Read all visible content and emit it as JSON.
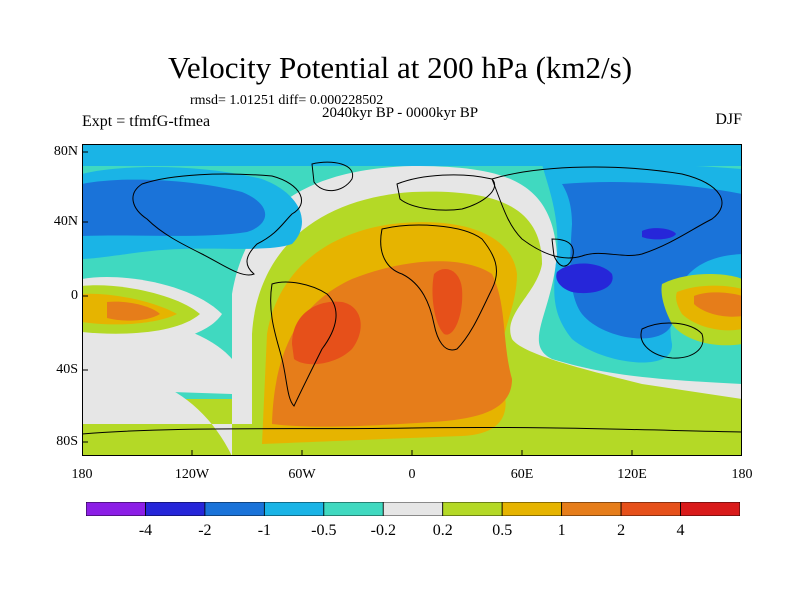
{
  "title": "Velocity Potential at 200 hPa (km2/s)",
  "stats": "rmsd= 1.01251 diff= 0.000228502",
  "period": "2040kyr BP - 0000kyr BP",
  "experiment": "Expt = tfmfG-tfmea",
  "season": "DJF",
  "y_ticks": [
    "80N",
    "40N",
    "0",
    "40S",
    "80S"
  ],
  "x_ticks": [
    "180",
    "120W",
    "60W",
    "0",
    "60E",
    "120E",
    "180"
  ],
  "colorbar": {
    "labels": [
      "-4",
      "-2",
      "-1",
      "-0.5",
      "-0.2",
      "0.2",
      "0.5",
      "1",
      "2",
      "4"
    ],
    "colors": [
      "#8c1ee6",
      "#2626d9",
      "#1a73d9",
      "#1ab4e6",
      "#40d9c0",
      "#e6e6e6",
      "#b4d926",
      "#e6b400",
      "#e67d1a",
      "#e6501a",
      "#d91a1a"
    ]
  }
}
